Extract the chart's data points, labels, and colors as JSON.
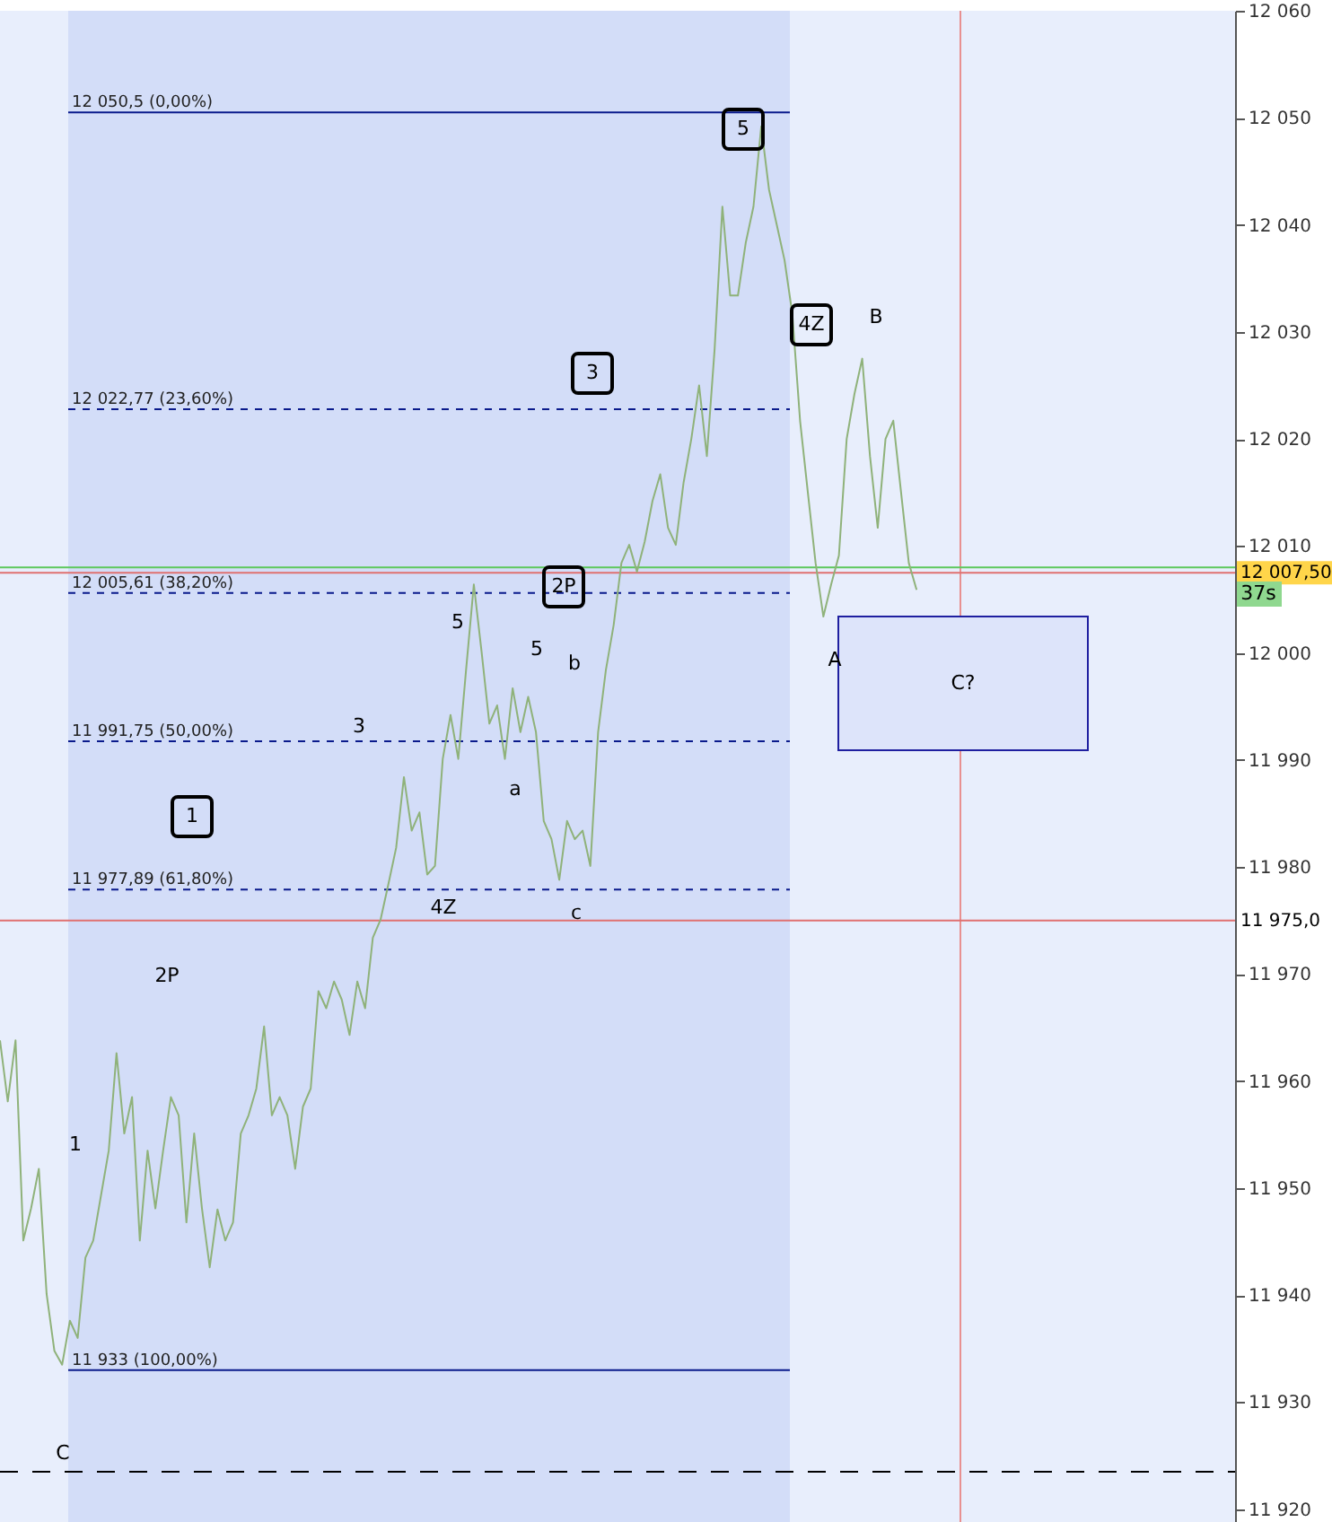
{
  "chart_data": {
    "type": "line",
    "categories": [
      null,
      null,
      null,
      null,
      null,
      null,
      null,
      null,
      null,
      null,
      null,
      null,
      null,
      null,
      null,
      null,
      null,
      null,
      null,
      null,
      null,
      null,
      null,
      null,
      null,
      null,
      null,
      null,
      null,
      null,
      null,
      null,
      null,
      null,
      null,
      null,
      null,
      null,
      null,
      null,
      null,
      null,
      null,
      null,
      null,
      null,
      null,
      null,
      null,
      null,
      null,
      null,
      null,
      null,
      null,
      null,
      null,
      null,
      null,
      null,
      null,
      null,
      null,
      null,
      null,
      null,
      null,
      null,
      null,
      null,
      null,
      null,
      null,
      null,
      null,
      null,
      null,
      null,
      null,
      null,
      null,
      null,
      null,
      null,
      null,
      null,
      null,
      null,
      null,
      null,
      null,
      null,
      null,
      null,
      null,
      null,
      null,
      null,
      null,
      null,
      null,
      null,
      null,
      null,
      null,
      null,
      null,
      null,
      null,
      null,
      null,
      null,
      null,
      null,
      null,
      null,
      null,
      null,
      null,
      null,
      null,
      null,
      null,
      null,
      null,
      null,
      null,
      null,
      null,
      null,
      null,
      null,
      null,
      null,
      null,
      null,
      null,
      null,
      null,
      null,
      null,
      null,
      null,
      null,
      null,
      null,
      null,
      null,
      null,
      null,
      null,
      null,
      null,
      null,
      null,
      null,
      null,
      null,
      null,
      null
    ],
    "ylim": [
      11918.8,
      12060
    ],
    "yticks": [
      {
        "value": 11920,
        "label": "11 920"
      },
      {
        "value": 11930,
        "label": "11 930"
      },
      {
        "value": 11940,
        "label": "11 940"
      },
      {
        "value": 11950,
        "label": "11 950"
      },
      {
        "value": 11960,
        "label": "11 960"
      },
      {
        "value": 11970,
        "label": "11 970"
      },
      {
        "value": 11980,
        "label": "11 980"
      },
      {
        "value": 11990,
        "label": "11 990"
      },
      {
        "value": 12000,
        "label": "12 000"
      },
      {
        "value": 12010,
        "label": "12 010"
      },
      {
        "value": 12020,
        "label": "12 020"
      },
      {
        "value": 12030,
        "label": "12 030"
      },
      {
        "value": 12040,
        "label": "12 040"
      },
      {
        "value": 12050,
        "label": "12 050"
      },
      {
        "value": 12060,
        "label": "12 060"
      }
    ],
    "tick_labels": "y",
    "series": [
      {
        "color": "#8fb27a",
        "values": [
          11963.8,
          11958.1,
          11963.8,
          11945.1,
          11948.1,
          11951.8,
          11940.1,
          11934.8,
          11933.5,
          11937.6,
          11936.0,
          11943.5,
          11945.1,
          11949.3,
          11953.5,
          11962.6,
          11955.1,
          11958.5,
          11945.1,
          11953.5,
          11948.1,
          11953.5,
          11958.5,
          11956.8,
          11946.8,
          11955.1,
          11948.1,
          11942.6,
          11948.0,
          11945.1,
          11946.8,
          11955.1,
          11956.8,
          11959.3,
          11965.1,
          11956.8,
          11958.5,
          11956.8,
          11951.8,
          11957.6,
          11959.3,
          11968.4,
          11966.8,
          11969.3,
          11967.6,
          11964.3,
          11969.3,
          11966.8,
          11973.4,
          11975.1,
          11978.4,
          11981.8,
          11988.4,
          11983.4,
          11985.1,
          11979.3,
          11980.1,
          11990.1,
          11994.2,
          11990.1,
          11998.4,
          12006.4,
          12000.1,
          11993.4,
          11995.1,
          11990.1,
          11996.7,
          11992.6,
          11995.9,
          11992.6,
          11984.3,
          11982.6,
          11978.8,
          11984.3,
          11982.6,
          11983.4,
          11980.1,
          11992.6,
          11998.4,
          12002.6,
          12008.4,
          12010.1,
          12007.6,
          12010.4,
          12014.2,
          12016.7,
          12011.7,
          12010.1,
          12015.9,
          12020.0,
          12025.0,
          12018.4,
          12028.4,
          12041.7,
          12033.4,
          12033.4,
          12038.3,
          12041.7,
          12049.2,
          12043.3,
          12040.0,
          12036.7,
          12031.7,
          12021.7,
          12015.0,
          12008.4,
          12003.4,
          12006.4,
          12009.1,
          12020.0,
          12024.2,
          12027.5,
          12018.4,
          12011.7,
          12020.0,
          12021.7,
          12015.0,
          12008.4,
          12005.9,
          null,
          null,
          null,
          null,
          null,
          null,
          null,
          null,
          null,
          null,
          null,
          null,
          null,
          null,
          null,
          null,
          null,
          null,
          null,
          null,
          null,
          null,
          null,
          null,
          null,
          null,
          null,
          null,
          null,
          null,
          null,
          null,
          null,
          null,
          null,
          null,
          null,
          null,
          null,
          null,
          null
        ]
      }
    ],
    "ref_lines": [
      {
        "axis": "y",
        "value": 12050.5,
        "label": "12 050,5 (0,00%)",
        "color": "#0a1a8c",
        "line_style": "solid"
      },
      {
        "axis": "y",
        "value": 12022.77,
        "label": "12 022,77 (23,60%)",
        "color": "#0a1a8c",
        "line_style": "dashed"
      },
      {
        "axis": "y",
        "value": 12005.61,
        "label": "12 005,61 (38,20%)",
        "color": "#0a1a8c",
        "line_style": "dashed"
      },
      {
        "axis": "y",
        "value": 11991.75,
        "label": "11 991,75 (50,00%)",
        "color": "#0a1a8c",
        "line_style": "dashed"
      },
      {
        "axis": "y",
        "value": 11977.89,
        "label": "11 977,89 (61,80%)",
        "color": "#0a1a8c",
        "line_style": "dashed"
      },
      {
        "axis": "y",
        "value": 11933,
        "label": "11 933 (100,00%)",
        "color": "#0a1a8c",
        "line_style": "solid"
      },
      {
        "axis": "y",
        "value": 12008.0,
        "color": "#5ec85e"
      },
      {
        "axis": "y",
        "value": 12007.5,
        "label": "12 007,50",
        "color": "#e07070"
      },
      {
        "axis": "y",
        "value": 11975.0,
        "label": "11 975,0",
        "color": "#e07070"
      },
      {
        "axis": "y",
        "value": 11923.5,
        "color": "#000000",
        "line_style": "dashed"
      }
    ],
    "bands": [
      {
        "axis": "y",
        "from": 11990.9,
        "to": 12003.4,
        "label": "C?",
        "color": "#1f1fa0"
      }
    ],
    "annotations": [
      "5",
      "4Z",
      "B",
      "3",
      "2P",
      "5",
      "5",
      "b",
      "A",
      "3",
      "a",
      "1",
      "4Z",
      "c",
      "2P",
      "1",
      "C",
      "37s"
    ]
  }
}
